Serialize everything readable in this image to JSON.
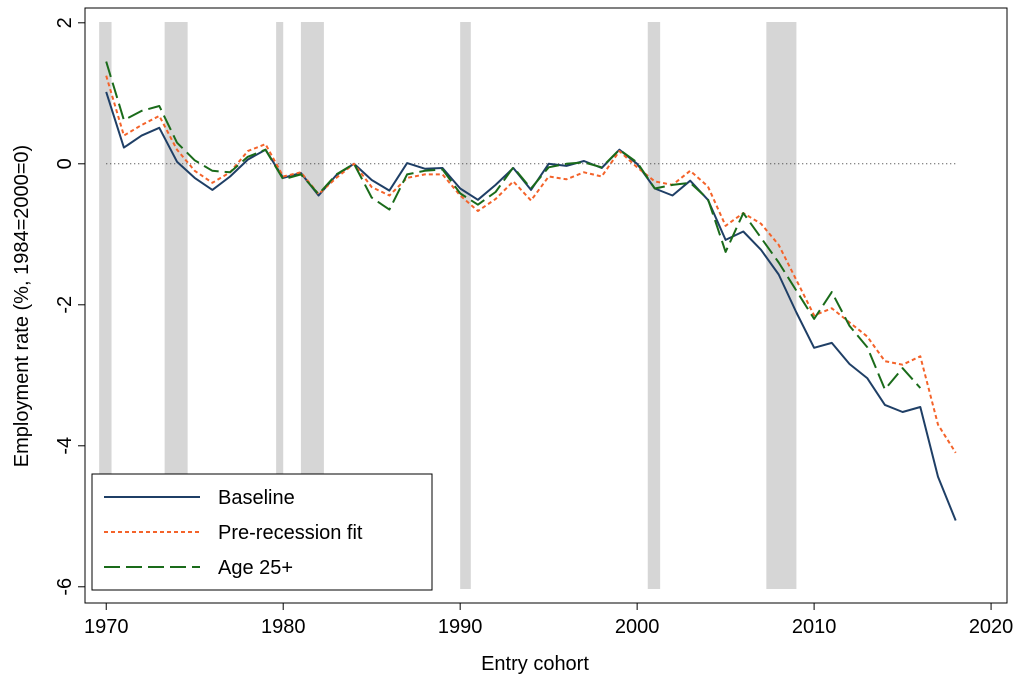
{
  "chart_data": {
    "type": "line",
    "x_label": "Entry cohort",
    "y_label": "Employment rate (%, 1984=2000=0)",
    "x": [
      1970,
      1971,
      1972,
      1973,
      1974,
      1975,
      1976,
      1977,
      1978,
      1979,
      1980,
      1981,
      1982,
      1983,
      1984,
      1985,
      1986,
      1987,
      1988,
      1989,
      1990,
      1991,
      1992,
      1993,
      1994,
      1995,
      1996,
      1997,
      1998,
      1999,
      2000,
      2001,
      2002,
      2003,
      2004,
      2005,
      2006,
      2007,
      2008,
      2009,
      2010,
      2011,
      2012,
      2013,
      2014,
      2015,
      2016,
      2017,
      2018
    ],
    "series": [
      {
        "name": "Baseline",
        "color": "#1f3f66",
        "dash": "none",
        "values": [
          1.02,
          0.23,
          0.4,
          0.51,
          0.03,
          -0.2,
          -0.37,
          -0.18,
          0.06,
          0.2,
          -0.2,
          -0.13,
          -0.45,
          -0.16,
          0,
          -0.23,
          -0.38,
          0.01,
          -0.07,
          -0.06,
          -0.35,
          -0.51,
          -0.3,
          -0.06,
          -0.37,
          0,
          -0.03,
          0.04,
          -0.06,
          0.2,
          0,
          -0.35,
          -0.45,
          -0.24,
          -0.51,
          -1.08,
          -0.96,
          -1.22,
          -1.57,
          -2.11,
          -2.61,
          -2.54,
          -2.84,
          -3.04,
          -3.42,
          -3.52,
          -3.45,
          -4.44,
          -5.06
        ]
      },
      {
        "name": "Pre-recession fit",
        "color": "#f4632a",
        "dash": "4 3",
        "values": [
          1.25,
          0.4,
          0.55,
          0.68,
          0.2,
          -0.1,
          -0.27,
          -0.12,
          0.18,
          0.28,
          -0.18,
          -0.12,
          -0.43,
          -0.2,
          0,
          -0.33,
          -0.45,
          -0.2,
          -0.15,
          -0.15,
          -0.45,
          -0.67,
          -0.5,
          -0.25,
          -0.52,
          -0.18,
          -0.22,
          -0.12,
          -0.18,
          0.18,
          -0.05,
          -0.25,
          -0.3,
          -0.1,
          -0.32,
          -0.88,
          -0.7,
          -0.85,
          -1.15,
          -1.65,
          -2.15,
          -2.05,
          -2.25,
          -2.45,
          -2.8,
          -2.85,
          -2.73,
          -3.7,
          -4.1
        ]
      },
      {
        "name": "Age 25+",
        "color": "#1a6b1a",
        "dash": "16 6",
        "values": [
          1.45,
          0.62,
          0.75,
          0.82,
          0.3,
          0.05,
          -0.1,
          -0.12,
          0.1,
          0.2,
          -0.22,
          -0.15,
          -0.43,
          -0.15,
          0,
          -0.48,
          -0.65,
          -0.15,
          -0.1,
          -0.08,
          -0.42,
          -0.58,
          -0.4,
          -0.05,
          -0.35,
          -0.05,
          0,
          0.02,
          -0.05,
          0.2,
          0.02,
          -0.35,
          -0.3,
          -0.27,
          -0.5,
          -1.25,
          -0.7,
          -1.05,
          -1.4,
          -1.8,
          -2.2,
          -1.82,
          -2.3,
          -2.6,
          -3.2,
          -2.9,
          -3.18,
          null,
          null
        ]
      }
    ],
    "shaded_periods": [
      [
        1969.6,
        1970.3
      ],
      [
        1973.3,
        1974.6
      ],
      [
        1979.6,
        1980.0
      ],
      [
        1981.0,
        1982.3
      ],
      [
        1990.0,
        1990.6
      ],
      [
        2000.6,
        2001.3
      ],
      [
        2007.3,
        2009.0
      ]
    ],
    "shade_color": "#d6d6d6",
    "reference_line": 0,
    "xlim": [
      1968.8,
      2020.9
    ],
    "xticks": [
      1970,
      1980,
      1990,
      2000,
      2010,
      2020
    ],
    "ylim": [
      -6.23,
      2.21
    ],
    "yticks": [
      2,
      0,
      -2,
      -4,
      -6
    ],
    "grid": false,
    "legend": "lower-left"
  }
}
